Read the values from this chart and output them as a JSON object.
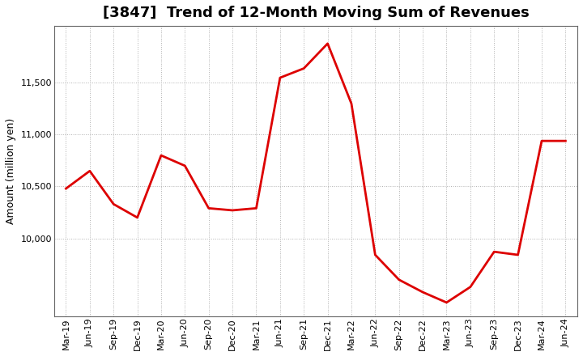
{
  "title": "[3847]  Trend of 12-Month Moving Sum of Revenues",
  "ylabel": "Amount (million yen)",
  "line_color": "#dd0000",
  "line_width": 2.0,
  "background_color": "#ffffff",
  "grid_color": "#b0b0b0",
  "labels": [
    "Mar-19",
    "Jun-19",
    "Sep-19",
    "Dec-19",
    "Mar-20",
    "Jun-20",
    "Sep-20",
    "Dec-20",
    "Mar-21",
    "Jun-21",
    "Sep-21",
    "Dec-21",
    "Mar-22",
    "Jun-22",
    "Sep-22",
    "Dec-22",
    "Mar-23",
    "Jun-23",
    "Sep-23",
    "Dec-23",
    "Mar-24",
    "Jun-24"
  ],
  "values": [
    10480,
    10650,
    10330,
    10200,
    10800,
    10700,
    10290,
    10270,
    10290,
    11550,
    11640,
    11880,
    11300,
    9840,
    9600,
    9480,
    9380,
    9530,
    9870,
    9840,
    10940,
    10940
  ],
  "ylim_min": 9250,
  "ylim_max": 12050,
  "yticks": [
    10000,
    10500,
    11000,
    11500
  ],
  "title_fontsize": 13,
  "axis_fontsize": 9,
  "tick_fontsize": 8
}
